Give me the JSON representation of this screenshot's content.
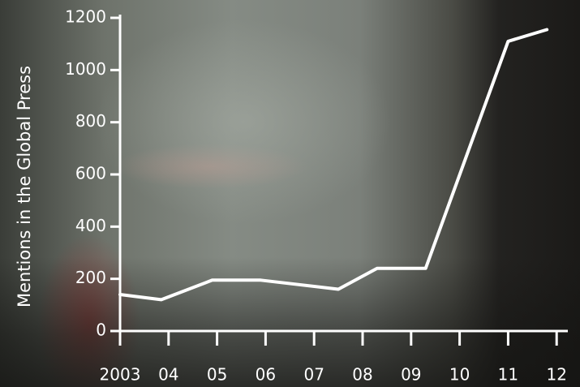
{
  "chart_data": {
    "type": "line",
    "ylabel": "Mentions in the Global Press",
    "xlabel": "",
    "categories": [
      "2003",
      "04",
      "05",
      "06",
      "07",
      "08",
      "09",
      "10",
      "11",
      "12"
    ],
    "ylim": [
      0,
      1200
    ],
    "yticks": [
      0,
      200,
      400,
      600,
      800,
      1000,
      1200
    ],
    "grid": false,
    "series": [
      {
        "points": [
          {
            "x": 2003.0,
            "y": 140
          },
          {
            "x": 2003.85,
            "y": 120
          },
          {
            "x": 2004.9,
            "y": 195
          },
          {
            "x": 2005.9,
            "y": 195
          },
          {
            "x": 2007.5,
            "y": 160
          },
          {
            "x": 2008.3,
            "y": 240
          },
          {
            "x": 2009.3,
            "y": 240
          },
          {
            "x": 2011.0,
            "y": 1110
          },
          {
            "x": 2011.8,
            "y": 1155
          }
        ]
      }
    ],
    "colors": {
      "line": "#ffffff",
      "axis": "#ffffff",
      "text": "#ffffff"
    }
  }
}
